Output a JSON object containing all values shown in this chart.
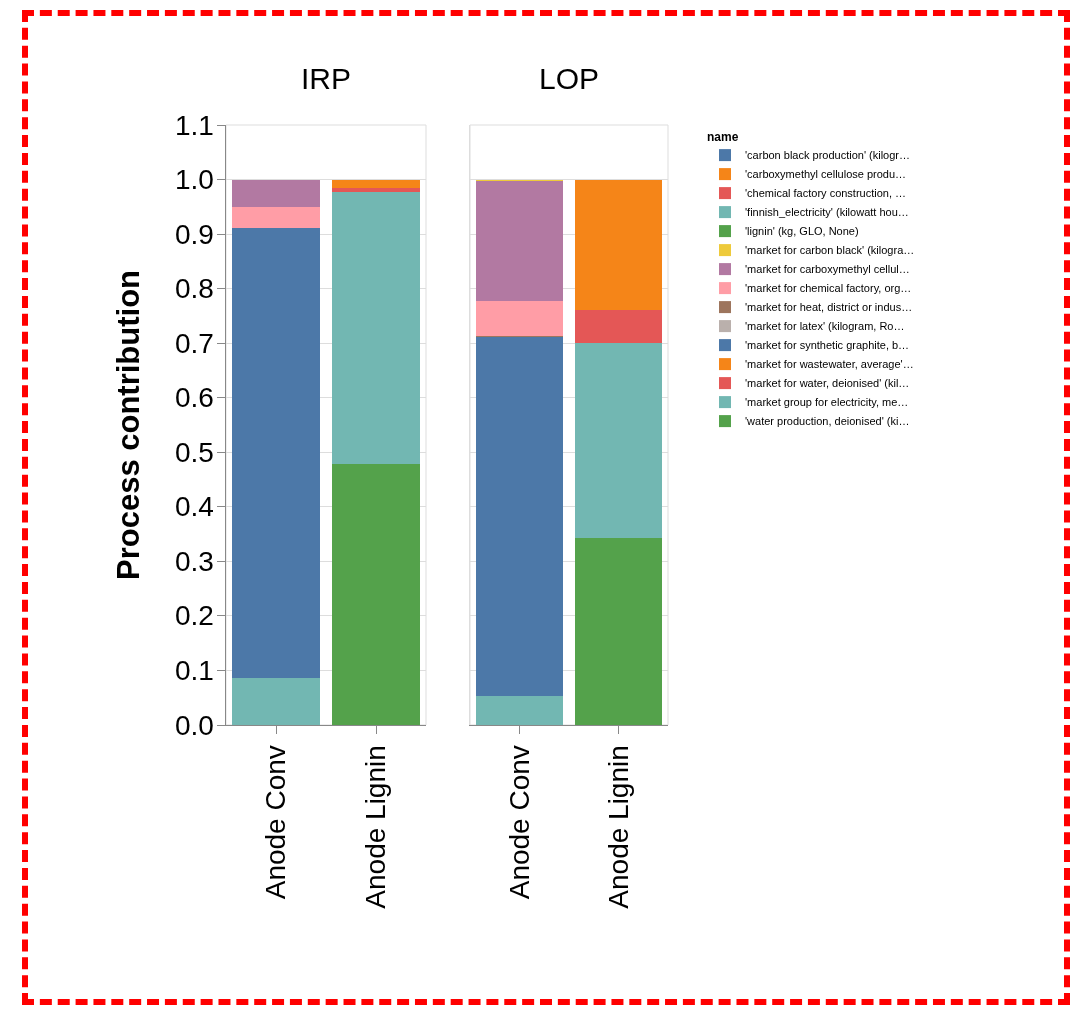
{
  "chart_data": [
    {
      "type": "bar",
      "title": "IRP",
      "ylabel": "Process contribution",
      "categories": [
        "Anode Conv",
        "Anode Lignin"
      ],
      "stacked": true,
      "ylim": [
        0,
        1.1
      ],
      "yticks": [
        {
          "value": 0,
          "label": "0.0"
        },
        0.1,
        0.2,
        0.3,
        0.4,
        0.5,
        0.6,
        0.7,
        0.8,
        0.9,
        {
          "value": 1,
          "label": "1.0"
        },
        1.1
      ],
      "grid": "y",
      "legend": false,
      "series": [
        {
          "color": "#54a24b",
          "values": [
            null,
            null
          ]
        },
        {
          "color": "#72b7b2",
          "values": [
            0.086,
            null
          ]
        },
        {
          "color": "#e45756",
          "values": [
            null,
            null
          ]
        },
        {
          "color": "#f58518",
          "values": [
            null,
            null
          ]
        },
        {
          "color": "#4c78a8",
          "values": [
            0.826,
            null
          ]
        },
        {
          "color": "#bab0ac",
          "values": [
            null,
            null
          ]
        },
        {
          "color": "#9d755d",
          "values": [
            null,
            null
          ]
        },
        {
          "color": "#ff9da6",
          "values": [
            0.037,
            null
          ]
        },
        {
          "color": "#b279a2",
          "values": [
            0.051,
            null
          ]
        },
        {
          "color": "#eeca3b",
          "values": [
            null,
            null
          ]
        },
        {
          "color": "#54a24b",
          "values": [
            null,
            0.478
          ]
        },
        {
          "color": "#72b7b2",
          "values": [
            null,
            0.5
          ]
        },
        {
          "color": "#e45756",
          "values": [
            null,
            0.006
          ]
        },
        {
          "color": "#f58518",
          "values": [
            null,
            0.016
          ]
        },
        {
          "color": "#4c78a8",
          "values": [
            null,
            null
          ]
        }
      ]
    },
    {
      "type": "bar",
      "title": "LOP",
      "categories": [
        "Anode Conv",
        "Anode Lignin"
      ],
      "stacked": true,
      "ylim": [
        0,
        1.1
      ],
      "yticks": [
        0,
        0.1,
        0.2,
        0.3,
        0.4,
        0.5,
        0.6,
        0.7,
        0.8,
        0.9,
        1,
        1.1
      ],
      "grid": "y",
      "tick_labels": "x",
      "legend": "right",
      "legend_title": "name",
      "series": [
        {
          "name": "'water production, deionised' (ki…",
          "color": "#54a24b",
          "values": [
            null,
            null
          ]
        },
        {
          "name": "'market group for electricity, me…",
          "color": "#72b7b2",
          "values": [
            0.053,
            null
          ]
        },
        {
          "name": "'market for water, deionised' (kil…",
          "color": "#e45756",
          "values": [
            null,
            null
          ]
        },
        {
          "name": "'market for wastewater, average'…",
          "color": "#f58518",
          "values": [
            null,
            null
          ]
        },
        {
          "name": "'market for synthetic graphite, b…",
          "color": "#4c78a8",
          "values": [
            0.658,
            null
          ]
        },
        {
          "name": "'market for latex' (kilogram, Ro…",
          "color": "#bab0ac",
          "values": [
            null,
            null
          ]
        },
        {
          "name": "'market for heat, district or indus…",
          "color": "#9d755d",
          "values": [
            0.003,
            null
          ]
        },
        {
          "name": "'market for chemical factory, org…",
          "color": "#ff9da6",
          "values": [
            0.064,
            null
          ]
        },
        {
          "name": "'market for carboxymethyl cellul…",
          "color": "#b279a2",
          "values": [
            0.22,
            null
          ]
        },
        {
          "name": "'market for carbon black' (kilogra…",
          "color": "#eeca3b",
          "values": [
            0.002,
            null
          ]
        },
        {
          "name": "'lignin' (kg, GLO, None)",
          "color": "#54a24b",
          "values": [
            null,
            0.342
          ]
        },
        {
          "name": "'finnish_electricity' (kilowatt hou…",
          "color": "#72b7b2",
          "values": [
            null,
            0.359
          ]
        },
        {
          "name": "'chemical factory construction, …",
          "color": "#e45756",
          "values": [
            null,
            0.059
          ]
        },
        {
          "name": "'carboxymethyl cellulose produ…",
          "color": "#f58518",
          "values": [
            null,
            0.24
          ]
        },
        {
          "name": "'carbon black production' (kilogr…",
          "color": "#4c78a8",
          "values": [
            null,
            null
          ]
        }
      ]
    }
  ]
}
